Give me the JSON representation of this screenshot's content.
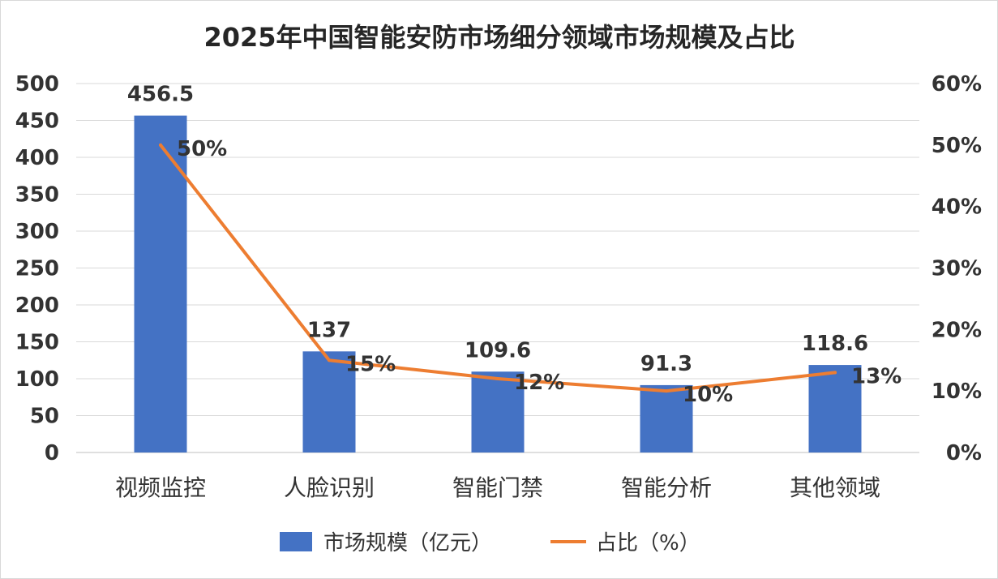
{
  "chart_data": {
    "type": "bar",
    "title": "2025年中国智能安防市场细分领域市场规模及占比",
    "categories": [
      "视频监控",
      "人脸识别",
      "智能门禁",
      "智能分析",
      "其他领域"
    ],
    "series": [
      {
        "name": "市场规模（亿元）",
        "type": "bar",
        "axis": "left",
        "color": "#4472c4",
        "values": [
          456.5,
          137,
          109.6,
          91.3,
          118.6
        ],
        "labels": [
          "456.5",
          "137",
          "109.6",
          "91.3",
          "118.6"
        ]
      },
      {
        "name": "占比（%）",
        "type": "line",
        "axis": "right",
        "color": "#ed7d31",
        "values": [
          50,
          15,
          12,
          10,
          13
        ],
        "labels": [
          "50%",
          "15%",
          "12%",
          "10%",
          "13%"
        ]
      }
    ],
    "y_left": {
      "ylim": [
        0,
        500
      ],
      "ticks": [
        "0",
        "50",
        "100",
        "150",
        "200",
        "250",
        "300",
        "350",
        "400",
        "450",
        "500"
      ]
    },
    "y_right": {
      "ylim": [
        0,
        60
      ],
      "ticks": [
        "0%",
        "10%",
        "20%",
        "30%",
        "40%",
        "50%",
        "60%"
      ]
    },
    "grid": true,
    "legend_position": "bottom"
  }
}
